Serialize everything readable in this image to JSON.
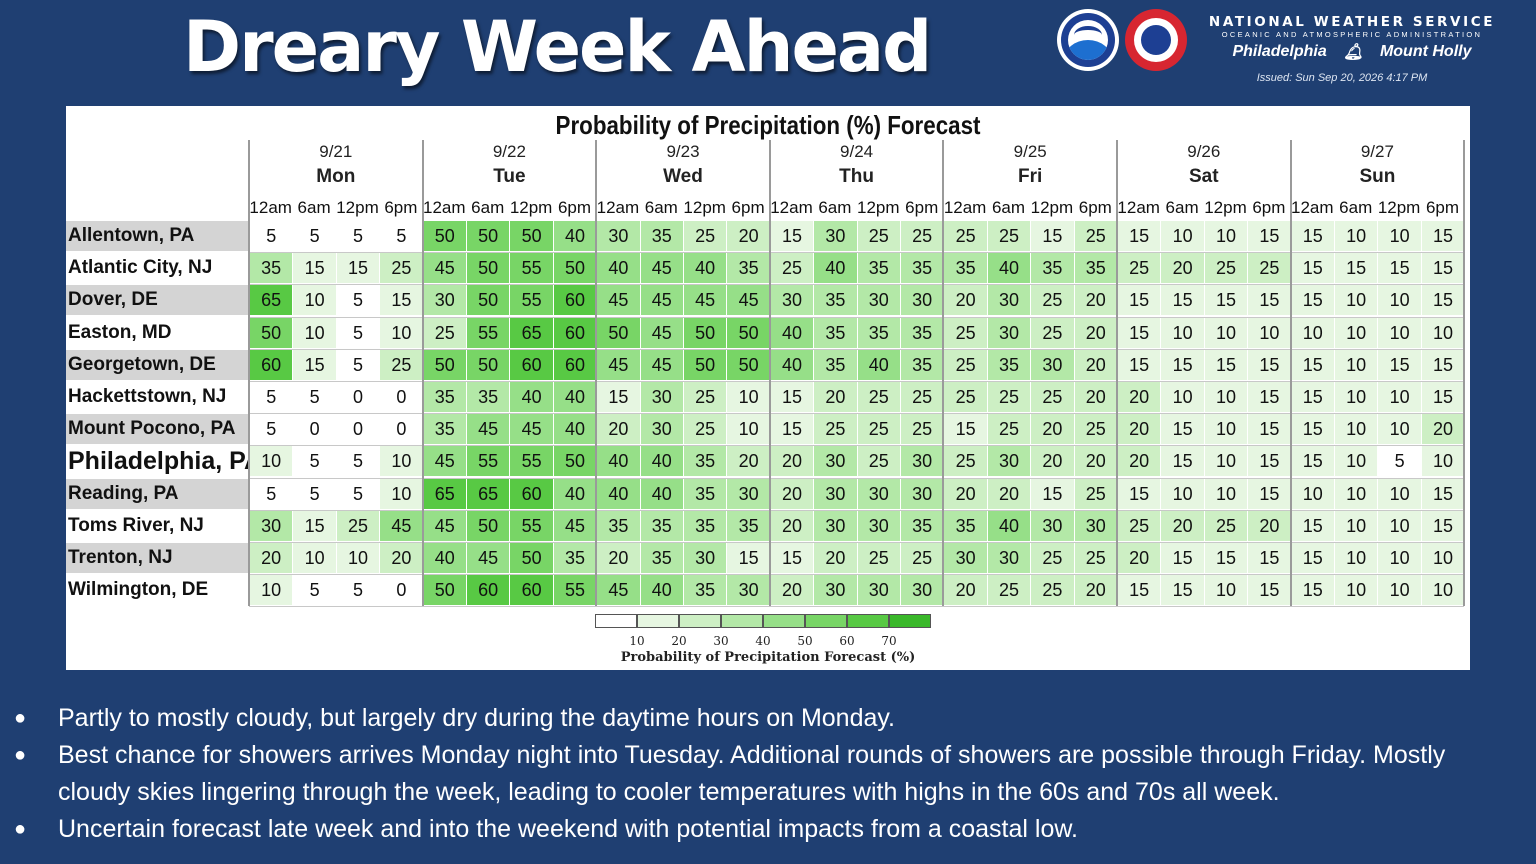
{
  "header": {
    "title": "Dreary Week Ahead",
    "org_name": "NATIONAL WEATHER SERVICE",
    "org_sub": "OCEANIC AND ATMOSPHERIC ADMINISTRATION",
    "office_left": "Philadelphia",
    "office_right": "Mount Holly",
    "issued": "Issued: Sun Sep 20, 2026 4:17 PM",
    "logo_left_text": "NOAA",
    "logo_right_text": "NATIONAL WEATHER SERVICE"
  },
  "table": {
    "title": "Probability of Precipitation (%) Forecast",
    "days": [
      {
        "date": "9/21",
        "name": "Mon"
      },
      {
        "date": "9/22",
        "name": "Tue"
      },
      {
        "date": "9/23",
        "name": "Wed"
      },
      {
        "date": "9/24",
        "name": "Thu"
      },
      {
        "date": "9/25",
        "name": "Fri"
      },
      {
        "date": "9/26",
        "name": "Sat"
      },
      {
        "date": "9/27",
        "name": "Sun"
      }
    ],
    "times": [
      "12am",
      "6am",
      "12pm",
      "6pm"
    ],
    "rows": [
      {
        "city": "Allentown, PA",
        "values": [
          5,
          5,
          5,
          5,
          50,
          50,
          50,
          40,
          30,
          35,
          25,
          20,
          15,
          30,
          25,
          25,
          25,
          25,
          15,
          25,
          15,
          10,
          10,
          15,
          15,
          10,
          10,
          15
        ]
      },
      {
        "city": "Atlantic City, NJ",
        "values": [
          35,
          15,
          15,
          25,
          45,
          50,
          55,
          50,
          40,
          45,
          40,
          35,
          25,
          40,
          35,
          35,
          35,
          40,
          35,
          35,
          25,
          20,
          25,
          25,
          15,
          15,
          15,
          15
        ]
      },
      {
        "city": "Dover, DE",
        "values": [
          65,
          10,
          5,
          15,
          30,
          50,
          55,
          60,
          45,
          45,
          45,
          45,
          30,
          35,
          30,
          30,
          20,
          30,
          25,
          20,
          15,
          15,
          15,
          15,
          15,
          10,
          10,
          15
        ]
      },
      {
        "city": "Easton, MD",
        "values": [
          50,
          10,
          5,
          10,
          25,
          55,
          65,
          60,
          50,
          45,
          50,
          50,
          40,
          35,
          35,
          35,
          25,
          30,
          25,
          20,
          15,
          10,
          10,
          10,
          10,
          10,
          10,
          10
        ]
      },
      {
        "city": "Georgetown, DE",
        "values": [
          60,
          15,
          5,
          25,
          50,
          50,
          60,
          60,
          45,
          45,
          50,
          50,
          40,
          35,
          40,
          35,
          25,
          35,
          30,
          20,
          15,
          15,
          15,
          15,
          15,
          10,
          15,
          15
        ]
      },
      {
        "city": "Hackettstown, NJ",
        "values": [
          5,
          5,
          0,
          0,
          35,
          35,
          40,
          40,
          15,
          30,
          25,
          10,
          15,
          20,
          25,
          25,
          25,
          25,
          25,
          20,
          20,
          10,
          10,
          15,
          15,
          10,
          10,
          15
        ]
      },
      {
        "city": "Mount Pocono, PA",
        "values": [
          5,
          0,
          0,
          0,
          35,
          45,
          45,
          40,
          20,
          30,
          25,
          10,
          15,
          25,
          25,
          25,
          15,
          25,
          20,
          25,
          20,
          15,
          10,
          15,
          15,
          10,
          10,
          20
        ]
      },
      {
        "city": "Philadelphia, PA",
        "values": [
          10,
          5,
          5,
          10,
          45,
          55,
          55,
          50,
          40,
          40,
          35,
          20,
          20,
          30,
          25,
          30,
          25,
          30,
          20,
          20,
          20,
          15,
          10,
          15,
          15,
          10,
          5,
          10
        ]
      },
      {
        "city": "Reading, PA",
        "values": [
          5,
          5,
          5,
          10,
          65,
          65,
          60,
          40,
          40,
          40,
          35,
          30,
          20,
          30,
          30,
          30,
          20,
          20,
          15,
          25,
          15,
          10,
          10,
          15,
          10,
          10,
          10,
          15
        ]
      },
      {
        "city": "Toms River, NJ",
        "values": [
          30,
          15,
          25,
          45,
          45,
          50,
          55,
          45,
          35,
          35,
          35,
          35,
          20,
          30,
          30,
          35,
          35,
          40,
          30,
          30,
          25,
          20,
          25,
          20,
          15,
          10,
          10,
          15
        ]
      },
      {
        "city": "Trenton, NJ",
        "values": [
          20,
          10,
          10,
          20,
          40,
          45,
          50,
          35,
          20,
          35,
          30,
          15,
          15,
          20,
          25,
          25,
          30,
          30,
          25,
          25,
          20,
          15,
          15,
          15,
          15,
          10,
          10,
          10
        ]
      },
      {
        "city": "Wilmington, DE",
        "values": [
          10,
          5,
          5,
          0,
          50,
          60,
          60,
          55,
          45,
          40,
          35,
          30,
          20,
          30,
          30,
          30,
          20,
          25,
          25,
          20,
          15,
          15,
          10,
          15,
          15,
          10,
          10,
          10
        ]
      }
    ],
    "legend": {
      "ticks": [
        "10",
        "20",
        "30",
        "40",
        "50",
        "60",
        "70"
      ],
      "title": "Probability of Precipitation Forecast (%)",
      "colors": [
        "#ffffff",
        "#e6f6e1",
        "#cdefc4",
        "#b3e8a7",
        "#96df88",
        "#78d566",
        "#58c944",
        "#3ab82a"
      ]
    }
  },
  "bullets": [
    "Partly to mostly cloudy, but largely dry during the daytime hours on Monday.",
    "Best chance for showers arrives Monday night into Tuesday. Additional rounds of showers are possible through Friday. Mostly cloudy skies lingering through the week, leading to cooler temperatures with highs in the 60s and 70s all week.",
    "Uncertain forecast late week and into the weekend with potential impacts from a coastal low."
  ]
}
